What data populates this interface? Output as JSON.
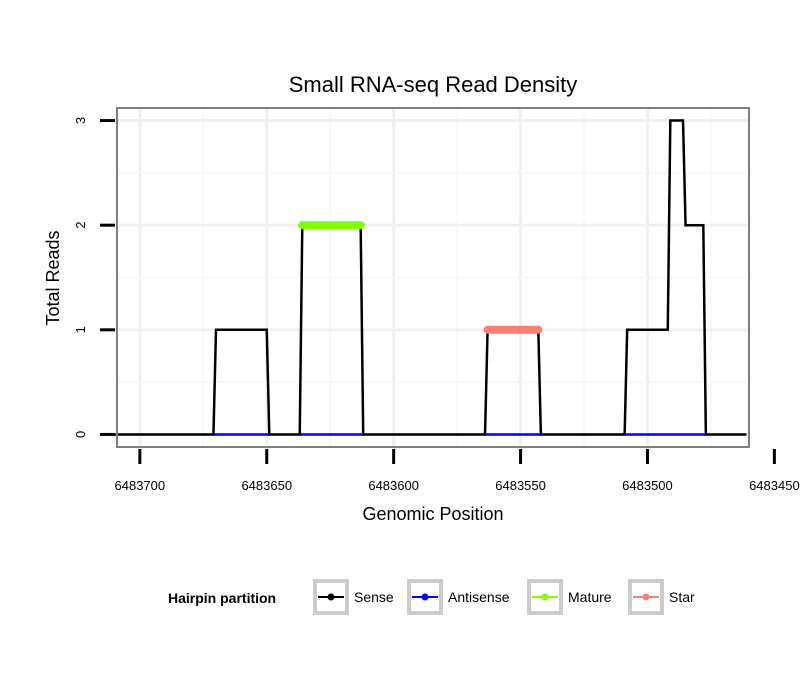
{
  "chart_data": {
    "type": "line",
    "title": "Small RNA-seq Read Density",
    "xlabel": "Genomic Position",
    "ylabel": "Total Reads",
    "x_reversed": true,
    "xlim": [
      6483709,
      6483460
    ],
    "ylim": [
      -0.12,
      3.12
    ],
    "x_ticks": [
      6483700,
      6483650,
      6483600,
      6483550,
      6483500,
      6483450
    ],
    "x_tick_labels": [
      "6483700",
      "6483650",
      "6483600",
      "6483550",
      "6483500",
      "6483450"
    ],
    "y_ticks": [
      0,
      1,
      2,
      3
    ],
    "y_tick_labels": [
      "0",
      "1",
      "2",
      "3"
    ],
    "grid": true,
    "legend_position": "bottom",
    "legend_title": "Hairpin partition",
    "series": [
      {
        "name": "Sense",
        "color": "#000000",
        "x": [
          6483710,
          6483671,
          6483670,
          6483650,
          6483649,
          6483637,
          6483636,
          6483613,
          6483612,
          6483564,
          6483563,
          6483543,
          6483542,
          6483509,
          6483508,
          6483492,
          6483491,
          6483486,
          6483485,
          6483478,
          6483477,
          6483461
        ],
        "y": [
          0,
          0,
          1,
          1,
          0,
          0,
          2,
          2,
          0,
          0,
          1,
          1,
          0,
          0,
          1,
          1,
          3,
          3,
          2,
          2,
          0,
          0
        ]
      },
      {
        "name": "Antisense",
        "color": "#0000ff",
        "x": [
          6483671,
          6483649,
          6483637,
          6483612,
          6483564,
          6483542,
          6483509,
          6483477
        ],
        "y": [
          0,
          0,
          0,
          0,
          0,
          0,
          0,
          0
        ]
      },
      {
        "name": "Mature",
        "color": "#7fff00",
        "x": [
          6483636,
          6483613
        ],
        "y": [
          2,
          2
        ]
      },
      {
        "name": "Star",
        "color": "#fa8072",
        "x": [
          6483563,
          6483543
        ],
        "y": [
          1,
          1
        ]
      }
    ]
  }
}
